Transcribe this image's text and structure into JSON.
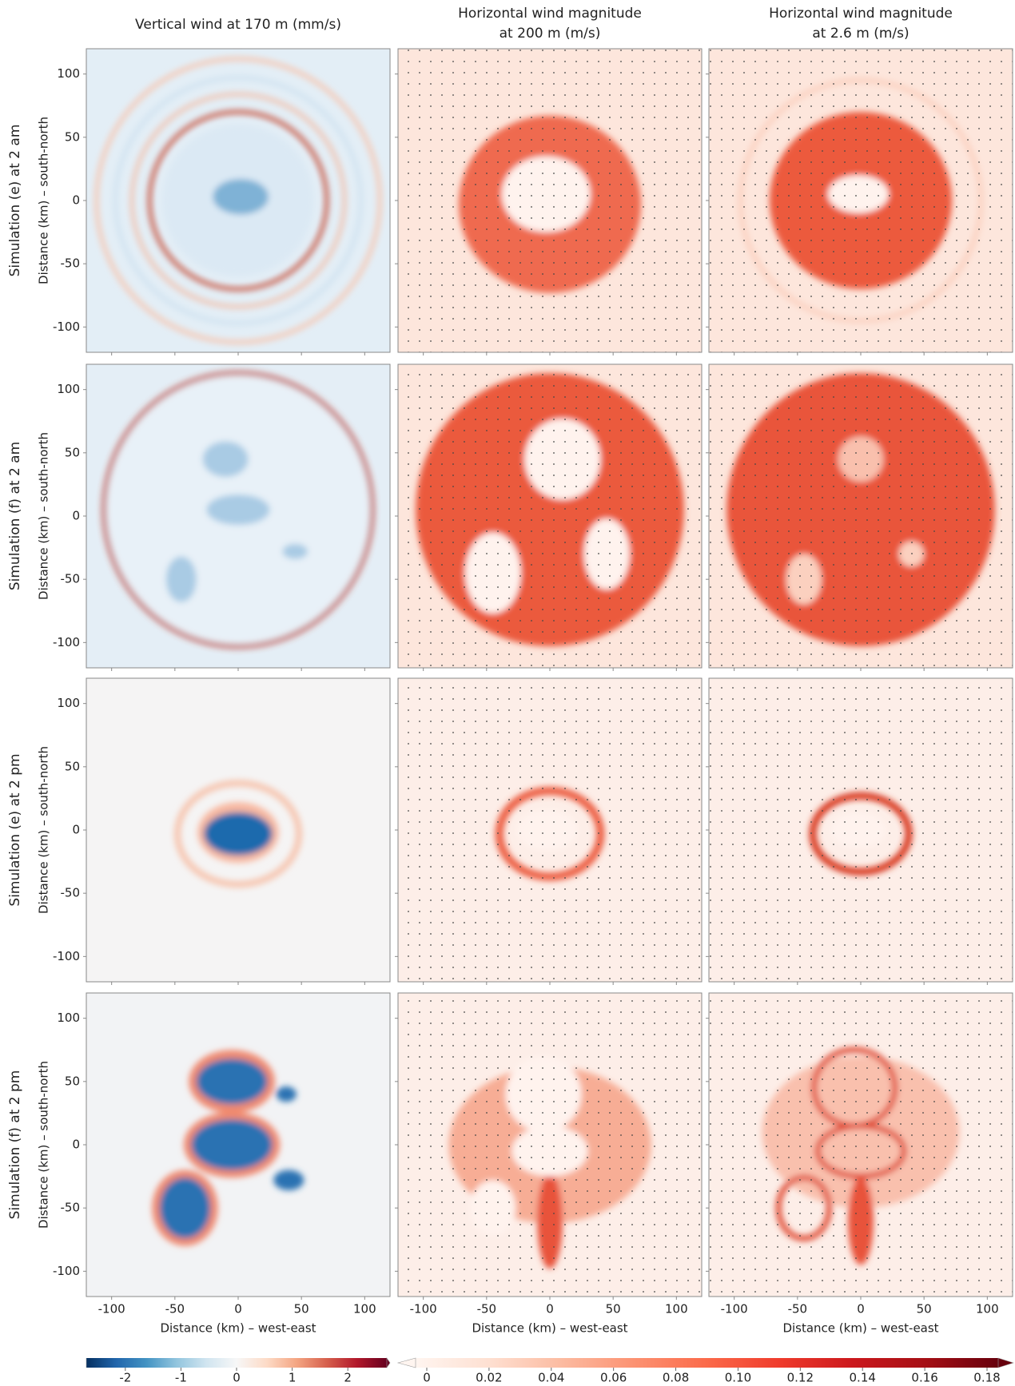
{
  "chart_data": {
    "type": "heatmap",
    "column_titles": [
      [
        "Vertical wind at 170 m (mm/s)"
      ],
      [
        "Horizontal wind magnitude",
        "at 200 m (m/s)"
      ],
      [
        "Horizontal wind magnitude",
        "at 2.6 m (m/s)"
      ]
    ],
    "row_titles": [
      "Simulation (e) at 2 am",
      "Simulation (f) at 2 am",
      "Simulation (e) at 2 pm",
      "Simulation (f) at 2 pm"
    ],
    "xlabel": "Distance (km) – west-east",
    "ylabel": "Distance (km) – south-north",
    "xlim": [
      -120,
      120
    ],
    "ylim": [
      -120,
      120
    ],
    "xticks": [
      -100,
      -50,
      0,
      50,
      100
    ],
    "yticks": [
      -100,
      -50,
      0,
      50,
      100
    ],
    "colorbars": [
      {
        "lim": [
          -2.5,
          2.5
        ],
        "ticks": [
          -2,
          -1,
          0,
          1,
          2
        ],
        "colors": [
          "#053061",
          "#2166ac",
          "#4393c3",
          "#92c5de",
          "#d1e5f0",
          "#f7f7f7",
          "#fddbc7",
          "#f4a582",
          "#d6604d",
          "#b2182b",
          "#67001f"
        ]
      },
      {
        "lim": [
          0,
          0.18
        ],
        "ticks": [
          0,
          0.02,
          0.04,
          0.06,
          0.08,
          {
            "value": 0.1,
            "label": "0.10"
          },
          0.12,
          0.14,
          0.16,
          0.18
        ],
        "colors": [
          "#fff5f0",
          "#fee0d2",
          "#fcbba1",
          "#fc9272",
          "#fb6a4a",
          "#ef3b2c",
          "#cb181d",
          "#a50f15",
          "#67000d"
        ]
      }
    ]
  }
}
